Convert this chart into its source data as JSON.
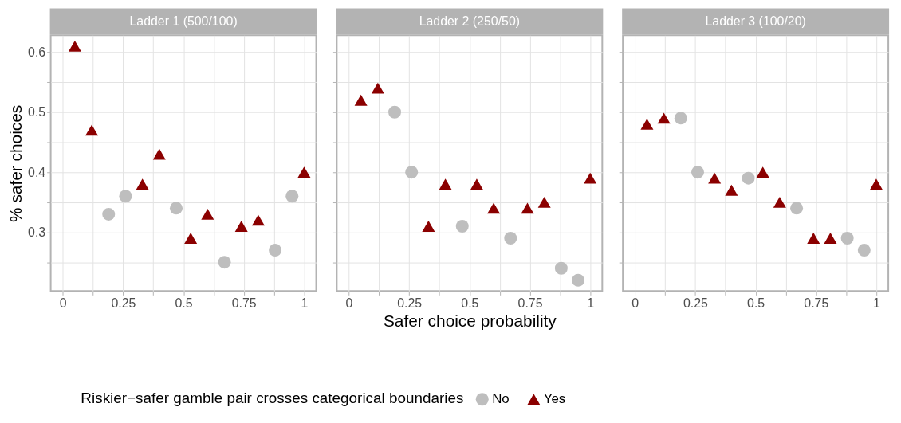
{
  "chart_data": [
    {
      "type": "scatter",
      "title": "Ladder 1 (500/100)",
      "ylabel": "% safer choices",
      "legend_title": "Riskier−safer gamble pair crosses categorical boundaries",
      "x": [
        0.19,
        0.26,
        0.47,
        0.67,
        0.88,
        0.95
      ],
      "series": [
        {
          "name": "No",
          "color": "#bebebe",
          "marker": "circle",
          "values": [
            0.33,
            0.36,
            0.34,
            0.25,
            0.27,
            0.36
          ]
        },
        {
          "name": "Yes",
          "color": "#8b0000",
          "marker": "triangle",
          "x": [
            0.05,
            0.12,
            0.33,
            0.4,
            0.53,
            0.6,
            0.74,
            0.81,
            1.0
          ],
          "values": [
            0.61,
            0.47,
            0.38,
            0.43,
            0.29,
            0.33,
            0.31,
            0.32,
            0.4
          ]
        }
      ],
      "xlim": [
        -0.05,
        1.05
      ],
      "ylim": [
        0.202,
        0.628
      ],
      "xticks": [
        0,
        {
          "value": 0.125,
          "label": null
        },
        0.25,
        {
          "value": 0.375,
          "label": null
        },
        0.5,
        {
          "value": 0.625,
          "label": null
        },
        0.75,
        {
          "value": 0.875,
          "label": null
        },
        1
      ],
      "yticks": [
        {
          "value": 0.25,
          "label": null
        },
        0.3,
        {
          "value": 0.35,
          "label": null
        },
        0.4,
        {
          "value": 0.45,
          "label": null
        },
        0.5,
        {
          "value": 0.55,
          "label": null
        },
        0.6
      ],
      "grid": true,
      "legend": "bottom"
    },
    {
      "type": "scatter",
      "title": "Ladder 2 (250/50)",
      "xlabel": "Safer choice probability",
      "x": [
        0.19,
        0.26,
        0.47,
        0.67,
        0.88,
        0.95
      ],
      "series": [
        {
          "name": "No",
          "color": "#bebebe",
          "marker": "circle",
          "values": [
            0.5,
            0.4,
            0.31,
            0.29,
            0.24,
            0.22
          ]
        },
        {
          "name": "Yes",
          "color": "#8b0000",
          "marker": "triangle",
          "x": [
            0.05,
            0.12,
            0.33,
            0.4,
            0.53,
            0.6,
            0.74,
            0.81,
            1.0
          ],
          "values": [
            0.52,
            0.54,
            0.31,
            0.38,
            0.38,
            0.34,
            0.34,
            0.35,
            0.39
          ]
        }
      ],
      "xlim": [
        -0.05,
        1.05
      ],
      "ylim": [
        0.202,
        0.628
      ],
      "xticks": [
        0,
        {
          "value": 0.125,
          "label": null
        },
        0.25,
        {
          "value": 0.375,
          "label": null
        },
        0.5,
        {
          "value": 0.625,
          "label": null
        },
        0.75,
        {
          "value": 0.875,
          "label": null
        },
        1
      ],
      "yticks": [
        {
          "value": 0.25,
          "label": null
        },
        0.3,
        {
          "value": 0.35,
          "label": null
        },
        0.4,
        {
          "value": 0.45,
          "label": null
        },
        0.5,
        {
          "value": 0.55,
          "label": null
        },
        0.6
      ],
      "grid": true,
      "tick_labels": "x"
    },
    {
      "type": "scatter",
      "title": "Ladder 3 (100/20)",
      "x": [
        0.19,
        0.26,
        0.47,
        0.67,
        0.88,
        0.95
      ],
      "series": [
        {
          "name": "No",
          "color": "#bebebe",
          "marker": "circle",
          "values": [
            0.49,
            0.4,
            0.39,
            0.34,
            0.29,
            0.27
          ]
        },
        {
          "name": "Yes",
          "color": "#8b0000",
          "marker": "triangle",
          "x": [
            0.05,
            0.12,
            0.33,
            0.4,
            0.53,
            0.6,
            0.74,
            0.81,
            1.0
          ],
          "values": [
            0.48,
            0.49,
            0.39,
            0.37,
            0.4,
            0.35,
            0.29,
            0.29,
            0.38
          ]
        }
      ],
      "xlim": [
        -0.05,
        1.05
      ],
      "ylim": [
        0.202,
        0.628
      ],
      "xticks": [
        0,
        {
          "value": 0.125,
          "label": null
        },
        0.25,
        {
          "value": 0.375,
          "label": null
        },
        0.5,
        {
          "value": 0.625,
          "label": null
        },
        0.75,
        {
          "value": 0.875,
          "label": null
        },
        1
      ],
      "yticks": [
        {
          "value": 0.25,
          "label": null
        },
        0.3,
        {
          "value": 0.35,
          "label": null
        },
        0.4,
        {
          "value": 0.45,
          "label": null
        },
        0.5,
        {
          "value": 0.55,
          "label": null
        },
        0.6
      ],
      "grid": true,
      "tick_labels": "x"
    }
  ]
}
